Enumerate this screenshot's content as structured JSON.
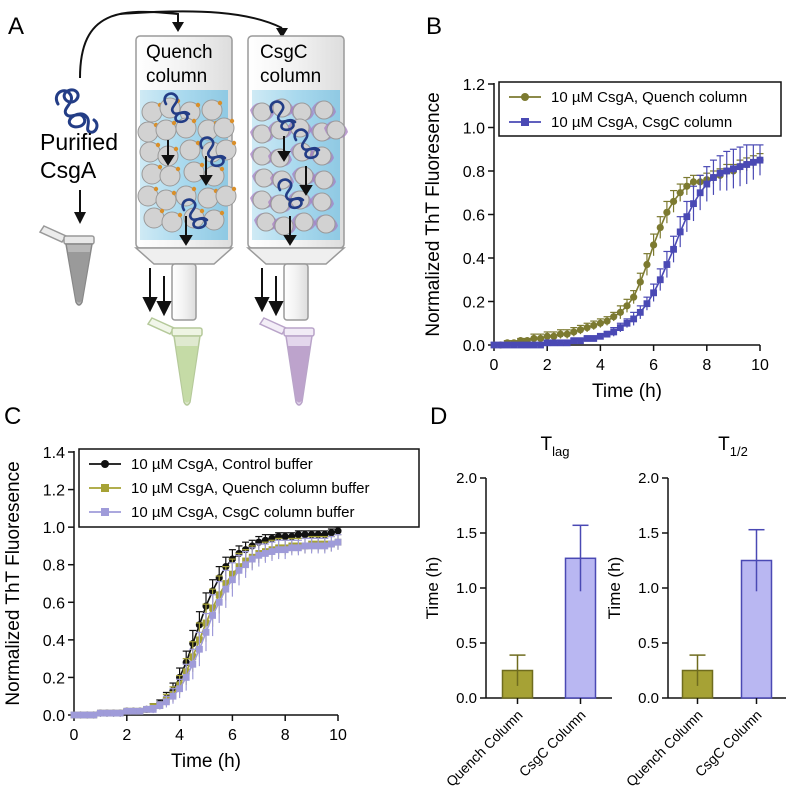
{
  "panels": {
    "a": "A",
    "b": "B",
    "c": "C",
    "d": "D"
  },
  "schematic": {
    "protein_label_line1": "Purified",
    "protein_label_line2": "CsgA",
    "quench_label_line1": "Quench",
    "quench_label_line2": "column",
    "csgc_label_line1": "CsgC",
    "csgc_label_line2": "column",
    "colors": {
      "protein": "#233d86",
      "bead": "#d2d2d2",
      "column_fill": "#a9d9ee",
      "quench_tube": "#c5dba6",
      "csgc_tube": "#bda3cc",
      "plain_tube": "#999999",
      "csgc_blob": "#a77fc2",
      "quench_dot": "#d98f2b"
    }
  },
  "chart_data": [
    {
      "id": "B",
      "type": "line",
      "xlabel": "Time (h)",
      "ylabel": "Normalized ThT Fluoresence",
      "xlim": [
        0,
        10
      ],
      "ylim": [
        0,
        1.2
      ],
      "xticks": [
        "0",
        "2",
        "4",
        "6",
        "8",
        "10"
      ],
      "yticks": [
        "0.0",
        "0.2",
        "0.4",
        "0.6",
        "0.8",
        "1.0",
        "1.2"
      ],
      "legend_position": "top-right",
      "series": [
        {
          "name": "10 µM CsgA, Quench column",
          "color": "#7c7a30",
          "marker": "circle",
          "x": [
            0,
            0.25,
            0.5,
            0.75,
            1,
            1.25,
            1.5,
            1.75,
            2,
            2.25,
            2.5,
            2.75,
            3,
            3.25,
            3.5,
            3.75,
            4,
            4.25,
            4.5,
            4.75,
            5,
            5.25,
            5.5,
            5.75,
            6,
            6.25,
            6.5,
            6.75,
            7,
            7.25,
            7.5,
            7.75,
            8,
            8.25,
            8.5,
            8.75,
            9,
            9.25,
            9.5,
            9.75,
            10
          ],
          "y": [
            0,
            0,
            0.01,
            0.01,
            0.02,
            0.02,
            0.03,
            0.03,
            0.04,
            0.04,
            0.05,
            0.05,
            0.06,
            0.07,
            0.08,
            0.09,
            0.1,
            0.11,
            0.13,
            0.15,
            0.18,
            0.22,
            0.29,
            0.37,
            0.46,
            0.54,
            0.61,
            0.66,
            0.7,
            0.73,
            0.75,
            0.75,
            0.76,
            0.77,
            0.78,
            0.8,
            0.8,
            0.82,
            0.83,
            0.84,
            0.85
          ],
          "err": [
            0.01,
            0.01,
            0.01,
            0.01,
            0.01,
            0.01,
            0.02,
            0.02,
            0.02,
            0.02,
            0.02,
            0.02,
            0.02,
            0.02,
            0.02,
            0.02,
            0.02,
            0.02,
            0.02,
            0.03,
            0.03,
            0.03,
            0.04,
            0.05,
            0.05,
            0.05,
            0.05,
            0.05,
            0.04,
            0.04,
            0.03,
            0.03,
            0.03,
            0.03,
            0.03,
            0.03,
            0.03,
            0.03,
            0.03,
            0.03,
            0.03
          ]
        },
        {
          "name": "10 µM CsgA, CsgC column",
          "color": "#4a49b4",
          "marker": "square",
          "x": [
            0,
            0.25,
            0.5,
            0.75,
            1,
            1.25,
            1.5,
            1.75,
            2,
            2.25,
            2.5,
            2.75,
            3,
            3.25,
            3.5,
            3.75,
            4,
            4.25,
            4.5,
            4.75,
            5,
            5.25,
            5.5,
            5.75,
            6,
            6.25,
            6.5,
            6.75,
            7,
            7.25,
            7.5,
            7.75,
            8,
            8.25,
            8.5,
            8.75,
            9,
            9.25,
            9.5,
            9.75,
            10
          ],
          "y": [
            0,
            0,
            0,
            0,
            0,
            0,
            0,
            0,
            0.01,
            0.01,
            0.01,
            0.01,
            0.02,
            0.02,
            0.03,
            0.03,
            0.04,
            0.05,
            0.06,
            0.08,
            0.1,
            0.12,
            0.15,
            0.19,
            0.24,
            0.3,
            0.37,
            0.44,
            0.52,
            0.59,
            0.65,
            0.7,
            0.74,
            0.77,
            0.79,
            0.8,
            0.81,
            0.82,
            0.83,
            0.84,
            0.85
          ],
          "err": [
            0,
            0,
            0,
            0,
            0,
            0,
            0.01,
            0.01,
            0.01,
            0.01,
            0.01,
            0.01,
            0.01,
            0.01,
            0.01,
            0.01,
            0.01,
            0.01,
            0.02,
            0.02,
            0.02,
            0.03,
            0.03,
            0.03,
            0.04,
            0.05,
            0.06,
            0.06,
            0.07,
            0.07,
            0.08,
            0.08,
            0.08,
            0.08,
            0.08,
            0.09,
            0.09,
            0.09,
            0.09,
            0.08,
            0.07
          ]
        }
      ]
    },
    {
      "id": "C",
      "type": "line",
      "xlabel": "Time (h)",
      "ylabel": "Normalized ThT Fluoresence",
      "xlim": [
        0,
        10
      ],
      "ylim": [
        0,
        1.4
      ],
      "xticks": [
        "0",
        "2",
        "4",
        "6",
        "8",
        "10"
      ],
      "yticks": [
        "0.0",
        "0.2",
        "0.4",
        "0.6",
        "0.8",
        "1.0",
        "1.2",
        "1.4"
      ],
      "legend_position": "top-right",
      "series": [
        {
          "name": "10 µM CsgA, Control buffer",
          "color": "#111111",
          "marker": "circle",
          "x": [
            0,
            0.25,
            0.5,
            0.75,
            1,
            1.25,
            1.5,
            1.75,
            2,
            2.25,
            2.5,
            2.75,
            3,
            3.25,
            3.5,
            3.75,
            4,
            4.25,
            4.5,
            4.75,
            5,
            5.25,
            5.5,
            5.75,
            6,
            6.25,
            6.5,
            6.75,
            7,
            7.25,
            7.5,
            7.75,
            8,
            8.25,
            8.5,
            8.75,
            9,
            9.25,
            9.5,
            9.75,
            10
          ],
          "y": [
            0,
            0,
            0,
            0,
            0.01,
            0.01,
            0.01,
            0.01,
            0.02,
            0.02,
            0.02,
            0.03,
            0.04,
            0.06,
            0.09,
            0.13,
            0.2,
            0.28,
            0.38,
            0.48,
            0.58,
            0.66,
            0.73,
            0.79,
            0.83,
            0.86,
            0.88,
            0.9,
            0.92,
            0.93,
            0.94,
            0.95,
            0.95,
            0.95,
            0.96,
            0.96,
            0.96,
            0.96,
            0.96,
            0.97,
            0.98
          ],
          "err": [
            0.01,
            0.01,
            0.01,
            0.01,
            0.01,
            0.01,
            0.01,
            0.01,
            0.01,
            0.01,
            0.01,
            0.01,
            0.02,
            0.02,
            0.03,
            0.04,
            0.05,
            0.06,
            0.07,
            0.07,
            0.07,
            0.06,
            0.06,
            0.05,
            0.05,
            0.04,
            0.04,
            0.03,
            0.03,
            0.03,
            0.02,
            0.02,
            0.02,
            0.02,
            0.02,
            0.02,
            0.02,
            0.02,
            0.02,
            0.02,
            0.02
          ]
        },
        {
          "name": "10 µM CsgA, Quench column buffer",
          "color": "#a6a235",
          "marker": "square",
          "x": [
            0,
            0.25,
            0.5,
            0.75,
            1,
            1.25,
            1.5,
            1.75,
            2,
            2.25,
            2.5,
            2.75,
            3,
            3.25,
            3.5,
            3.75,
            4,
            4.25,
            4.5,
            4.75,
            5,
            5.25,
            5.5,
            5.75,
            6,
            6.25,
            6.5,
            6.75,
            7,
            7.25,
            7.5,
            7.75,
            8,
            8.25,
            8.5,
            8.75,
            9,
            9.25,
            9.5,
            9.75,
            10
          ],
          "y": [
            0,
            0,
            0,
            0,
            0.01,
            0.01,
            0.01,
            0.01,
            0.02,
            0.02,
            0.02,
            0.03,
            0.04,
            0.05,
            0.08,
            0.11,
            0.16,
            0.23,
            0.31,
            0.4,
            0.49,
            0.57,
            0.64,
            0.7,
            0.75,
            0.79,
            0.82,
            0.84,
            0.86,
            0.87,
            0.88,
            0.89,
            0.89,
            0.9,
            0.9,
            0.9,
            0.91,
            0.91,
            0.91,
            0.91,
            0.92
          ],
          "err": [
            0.01,
            0.01,
            0.01,
            0.01,
            0.01,
            0.01,
            0.01,
            0.01,
            0.01,
            0.01,
            0.01,
            0.01,
            0.02,
            0.02,
            0.03,
            0.04,
            0.05,
            0.07,
            0.08,
            0.09,
            0.1,
            0.1,
            0.1,
            0.09,
            0.08,
            0.07,
            0.06,
            0.06,
            0.05,
            0.05,
            0.05,
            0.05,
            0.04,
            0.04,
            0.04,
            0.04,
            0.04,
            0.04,
            0.04,
            0.04,
            0.04
          ]
        },
        {
          "name": "10 µM CsgA, CsgC column buffer",
          "color": "#9f9bd9",
          "marker": "square",
          "x": [
            0,
            0.25,
            0.5,
            0.75,
            1,
            1.25,
            1.5,
            1.75,
            2,
            2.25,
            2.5,
            2.75,
            3,
            3.25,
            3.5,
            3.75,
            4,
            4.25,
            4.5,
            4.75,
            5,
            5.25,
            5.5,
            5.75,
            6,
            6.25,
            6.5,
            6.75,
            7,
            7.25,
            7.5,
            7.75,
            8,
            8.25,
            8.5,
            8.75,
            9,
            9.25,
            9.5,
            9.75,
            10
          ],
          "y": [
            0,
            0,
            0,
            0,
            0.01,
            0.01,
            0.01,
            0.01,
            0.02,
            0.02,
            0.02,
            0.03,
            0.03,
            0.05,
            0.07,
            0.1,
            0.14,
            0.2,
            0.27,
            0.35,
            0.44,
            0.53,
            0.6,
            0.67,
            0.72,
            0.77,
            0.8,
            0.83,
            0.85,
            0.86,
            0.87,
            0.88,
            0.88,
            0.89,
            0.89,
            0.9,
            0.9,
            0.9,
            0.9,
            0.91,
            0.92
          ],
          "err": [
            0.01,
            0.01,
            0.01,
            0.01,
            0.01,
            0.01,
            0.01,
            0.01,
            0.01,
            0.01,
            0.01,
            0.01,
            0.02,
            0.02,
            0.03,
            0.04,
            0.05,
            0.07,
            0.08,
            0.09,
            0.1,
            0.11,
            0.11,
            0.1,
            0.09,
            0.08,
            0.07,
            0.06,
            0.06,
            0.05,
            0.05,
            0.05,
            0.05,
            0.04,
            0.04,
            0.04,
            0.04,
            0.04,
            0.04,
            0.04,
            0.04
          ]
        }
      ]
    },
    {
      "id": "D1",
      "type": "bar",
      "title_main": "T",
      "title_sub": "lag",
      "ylabel": "Time (h)",
      "ylim": [
        0,
        2
      ],
      "yticks": [
        "0.0",
        "0.5",
        "1.0",
        "1.5",
        "2.0"
      ],
      "categories": [
        "Quench Column",
        "CsgC Column"
      ],
      "values": [
        0.25,
        1.27
      ],
      "errors": [
        0.14,
        0.3
      ],
      "colors": [
        "#a6a235",
        "#b9b7f2"
      ],
      "edge_colors": [
        "#6f6c1e",
        "#4a49b4"
      ]
    },
    {
      "id": "D2",
      "type": "bar",
      "title_main": "T",
      "title_sub": "1/2",
      "ylabel": "Time (h)",
      "ylim": [
        0,
        2
      ],
      "yticks": [
        "0.0",
        "0.5",
        "1.0",
        "1.5",
        "2.0"
      ],
      "categories": [
        "Quench Column",
        "CsgC Column"
      ],
      "values": [
        0.25,
        1.25
      ],
      "errors": [
        0.14,
        0.28
      ],
      "colors": [
        "#a6a235",
        "#b9b7f2"
      ],
      "edge_colors": [
        "#6f6c1e",
        "#4a49b4"
      ]
    }
  ]
}
